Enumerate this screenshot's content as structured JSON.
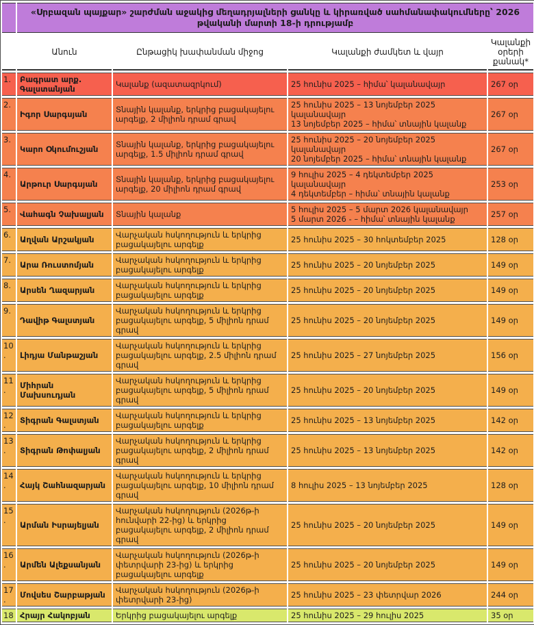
{
  "title": "«Սրբազան պայքար» շարժման աջակից մեղադրյալների ցանկը և կիրառված սահմանափակումները՝ 2026 թվականի մարտի 18-ի դրությամբ",
  "columns": {
    "number": "",
    "name": "Անուն",
    "measure": "Ընթացիկ խափանման միջոց",
    "period": "Կալանքի ժամկետ և վայր",
    "days": "Կալանքի օրերի քանակ*"
  },
  "colors": {
    "title_bg": "#bf7cda",
    "row_red": "#f6604e",
    "row_orange": "#f5814e",
    "row_amber": "#f4af4c",
    "row_green": "#d9e86c",
    "border": "#4d4d4d",
    "text": "#1d1d1d"
  },
  "rows": [
    {
      "num": "1.",
      "name": "Բագրատ արք. Գալստանյան",
      "measure": "Կալանք (ազատազրկում)",
      "period": "25 հունիս 2025 – հիմա՝ կալանավայր",
      "days": "267 օր",
      "color": "red"
    },
    {
      "num": "2.",
      "name": "Իգոր Սարգսյան",
      "measure": "Տնային կալանք, երկրից բացակայելու արգելք, 2 միլիոն դրամ գրավ",
      "period": "25 հունիս 2025 – 13 նոյեմբեր 2025 կալանավայր\n13 նոյեմբեր 2025 – հիմա՝ տնային կալանք",
      "days": "267 օր",
      "color": "orange"
    },
    {
      "num": "3.",
      "name": "Կարո Օկումուշյան",
      "measure": "Տնային կալանք, երկրից բացակայելու արգելք, 1.5 միլիոն դրամ գրավ",
      "period": "25 հունիս 2025 – 20 նոյեմբեր 2025 կալանավայր\n20 նոյեմբեր 2025 – հիմա՝ տնային կալանք",
      "days": "267 օր",
      "color": "orange"
    },
    {
      "num": "4.",
      "name": "Արթուր Սարգսյան",
      "measure": "Տնային կալանք, երկրից բացակայելու արգելք, 20 միլիոն դրամ գրավ",
      "period": "9 հուլիս 2025 – 4 դեկտեմբեր 2025 կալանավայր\n4 դեկտեմբեր – հիմա՝ տնային կալանք",
      "days": "253 օր",
      "color": "orange"
    },
    {
      "num": "5.",
      "name": "Վահագն Չախալյան",
      "measure": "Տնային կալանք",
      "period": "5 հուլիս 2025 – 5 մարտ 2026 կալանավայր\n5 մարտ 2026 - – հիմա՝ տնային կալանք",
      "days": "257 օր",
      "color": "orange"
    },
    {
      "num": "6.",
      "name": "Աղվան Արշակյան",
      "measure": "Վարչական հսկողություն և երկրից բացակայելու արգելք",
      "period": "25 հունիս 2025 – 30 հոկտեմբեր 2025",
      "days": "128 օր",
      "color": "amber"
    },
    {
      "num": "7.",
      "name": "Արա Ռուստոմյան",
      "measure": "Վարչական հսկողություն և երկրից բացակայելու արգելք",
      "period": "25 հունիս 2025 – 20 նոյեմբեր 2025",
      "days": "149 օր",
      "color": "amber"
    },
    {
      "num": "8.",
      "name": "Արսեն Ղազարյան",
      "measure": "Վարչական հսկողություն և երկրից բացակայելու արգելք",
      "period": "25 հունիս 2025 – 20 նոյեմբեր 2025",
      "days": "149 օր",
      "color": "amber"
    },
    {
      "num": "9.",
      "name": "Դավիթ Գալստյան",
      "measure": "Վարչական հսկողություն և երկրից բացակայելու արգելք, 5 միլիոն դրամ գրավ",
      "period": "25 հունիս 2025 – 20 նոյեմբեր 2025",
      "days": "149 օր",
      "color": "amber"
    },
    {
      "num": "10.",
      "name": "Լիդյա Մանթաշյան",
      "measure": "Վարչական հսկողություն և երկրից բացակայելու արգելք, 2.5 միլիոն դրամ գրավ",
      "period": "25 հունիս 2025 – 27 նոյեմբեր 2025",
      "days": "156 օր",
      "color": "amber"
    },
    {
      "num": "11.",
      "name": "Միհրան Մախսուդյան",
      "measure": "Վարչական հսկողություն և երկրից բացակայելու արգելք, 5 միլիոն դրամ գրավ",
      "period": "25 հունիս 2025 – 20 նոյեմբեր 2025",
      "days": "149 օր",
      "color": "amber"
    },
    {
      "num": "12.",
      "name": "Տիգրան Գալստյան",
      "measure": "Վարչական հսկողություն և երկրից բացակայելու արգելք",
      "period": "25 հունիս 2025 – 13 նոյեմբեր 2025",
      "days": "142 օր",
      "color": "amber"
    },
    {
      "num": "13.",
      "name": "Տիգրան Թոփալյան",
      "measure": "Վարչական հսկողություն և երկրից բացակայելու արգելք, 2 միլիոն դրամ գրավ",
      "period": "25 հունիս 2025 – 13 նոյեմբեր 2025",
      "days": "142 օր",
      "color": "amber"
    },
    {
      "num": "14.",
      "name": "Հայկ Շահնազարյան",
      "measure": "Վարչական հսկողություն և երկրից բացակայելու արգելք, 10 միլիոն դրամ գրավ",
      "period": "8 հուլիս 2025 – 13 նոյեմբեր 2025",
      "days": "128 օր",
      "color": "amber"
    },
    {
      "num": "15.",
      "name": "Արման Իսրայելյան",
      "measure": "Վարչական հսկողություն (2026թ-ի հունվարի 22-ից) և երկրից բացակայելու արգելք, 2 միլիոն դրամ գրավ",
      "period": "25 հունիս 2025 – 20 նոյեմբեր 2025",
      "days": "149 օր",
      "color": "amber"
    },
    {
      "num": "16.",
      "name": "Արմեն Ալեքսանյան",
      "measure": "Վարչական հսկողություն (2026թ-ի փետրվարի 23-ից) և երկրից բացակայելու արգելք",
      "period": "25 հունիս 2025 – 20 նոյեմբեր 2025",
      "days": "149 օր",
      "color": "amber"
    },
    {
      "num": "17.",
      "name": "Մովսես Շարբաթյան",
      "measure": "Վարչական հսկողություն (2026թ-ի փետրվարի 23-ից)",
      "period": "25 հունիս 2025 – 23 փետրվար 2026",
      "days": "244 օր",
      "color": "amber"
    },
    {
      "num": "18",
      "name": "Հրայր Հակոբյան",
      "measure": "Երկրից բացակայելու արգելք",
      "period": "25 հունիս 2025 – 29 հուլիս 2025",
      "days": "35 օր",
      "color": "green"
    }
  ]
}
